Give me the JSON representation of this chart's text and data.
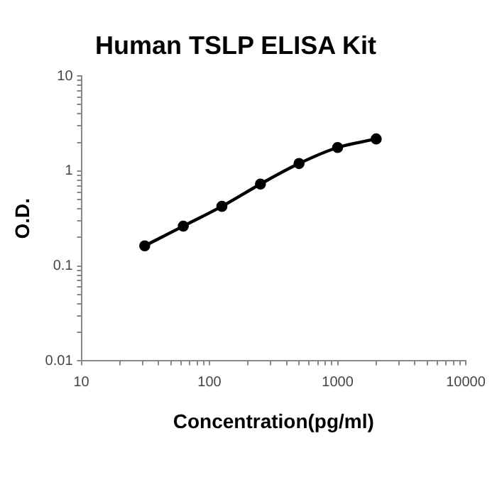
{
  "chart_data": {
    "type": "line",
    "title": "Human TSLP ELISA Kit",
    "xlabel": "Concentration(pg/ml)",
    "ylabel": "O.D.",
    "x": [
      31.25,
      62.5,
      125,
      250,
      500,
      1000,
      2000
    ],
    "series": [
      {
        "color": "#000000",
        "values": [
          0.163,
          0.263,
          0.425,
          0.73,
          1.2,
          1.77,
          2.18
        ]
      }
    ],
    "log": "xy",
    "xlim": [
      10,
      10000
    ],
    "ylim": [
      0.01,
      10
    ],
    "xticks": [
      10,
      {
        "value": 20,
        "label": null
      },
      {
        "value": 30,
        "label": null
      },
      {
        "value": 40,
        "label": null
      },
      {
        "value": 50,
        "label": null
      },
      {
        "value": 60,
        "label": null
      },
      {
        "value": 70,
        "label": null
      },
      {
        "value": 80,
        "label": null
      },
      {
        "value": 90,
        "label": null
      },
      100,
      {
        "value": 200,
        "label": null
      },
      {
        "value": 300,
        "label": null
      },
      {
        "value": 400,
        "label": null
      },
      {
        "value": 500,
        "label": null
      },
      {
        "value": 600,
        "label": null
      },
      {
        "value": 700,
        "label": null
      },
      {
        "value": 800,
        "label": null
      },
      {
        "value": 900,
        "label": null
      },
      1000,
      {
        "value": 2000,
        "label": null
      },
      {
        "value": 3000,
        "label": null
      },
      {
        "value": 4000,
        "label": null
      },
      {
        "value": 5000,
        "label": null
      },
      {
        "value": 6000,
        "label": null
      },
      {
        "value": 7000,
        "label": null
      },
      {
        "value": 8000,
        "label": null
      },
      {
        "value": 9000,
        "label": null
      },
      10000
    ],
    "yticks": [
      0.01,
      {
        "value": 0.02,
        "label": null
      },
      {
        "value": 0.03,
        "label": null
      },
      {
        "value": 0.04,
        "label": null
      },
      {
        "value": 0.05,
        "label": null
      },
      {
        "value": 0.06,
        "label": null
      },
      {
        "value": 0.07,
        "label": null
      },
      {
        "value": 0.08,
        "label": null
      },
      {
        "value": 0.09,
        "label": null
      },
      0.1,
      {
        "value": 0.2,
        "label": null
      },
      {
        "value": 0.3,
        "label": null
      },
      {
        "value": 0.4,
        "label": null
      },
      {
        "value": 0.5,
        "label": null
      },
      {
        "value": 0.6,
        "label": null
      },
      {
        "value": 0.7,
        "label": null
      },
      {
        "value": 0.8,
        "label": null
      },
      {
        "value": 0.9,
        "label": null
      },
      1,
      {
        "value": 2,
        "label": null
      },
      {
        "value": 3,
        "label": null
      },
      {
        "value": 4,
        "label": null
      },
      {
        "value": 5,
        "label": null
      },
      {
        "value": 6,
        "label": null
      },
      {
        "value": 7,
        "label": null
      },
      {
        "value": 8,
        "label": null
      },
      {
        "value": 9,
        "label": null
      },
      10
    ],
    "grid": false,
    "legend": false,
    "marker": "circle",
    "line_style": "solid"
  }
}
